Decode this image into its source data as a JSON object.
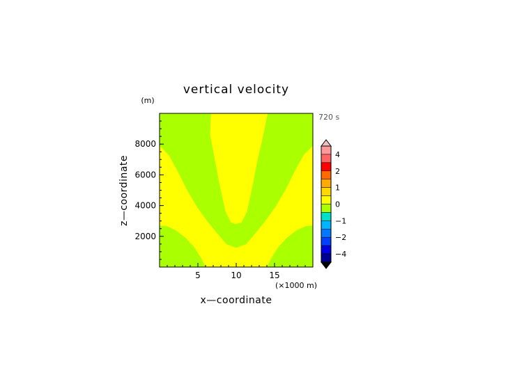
{
  "chart_data": {
    "type": "heatmap",
    "title": "vertical velocity",
    "time_label": "720 s",
    "xlabel": "x—coordinate",
    "ylabel": "z—coordinate",
    "x_unit": "(×1000 m)",
    "y_unit": "(m)",
    "xlim": [
      0,
      20
    ],
    "ylim": [
      0,
      10000
    ],
    "x_ticks": [
      5,
      10,
      15
    ],
    "y_ticks": [
      2000,
      4000,
      6000,
      8000
    ],
    "regions": [
      {
        "name": "positive",
        "color": "#ffff00",
        "polygons": [
          [
            [
              6.7,
              10000
            ],
            [
              14.1,
              10000
            ],
            [
              13.5,
              8500
            ],
            [
              12.8,
              7000
            ],
            [
              12.1,
              5200
            ],
            [
              11.4,
              3600
            ],
            [
              10.7,
              2900
            ],
            [
              10,
              2800
            ],
            [
              9.3,
              2900
            ],
            [
              8.6,
              3600
            ],
            [
              7.9,
              5200
            ],
            [
              7.2,
              7000
            ],
            [
              6.6,
              8600
            ]
          ],
          [
            [
              0,
              7900
            ],
            [
              1.2,
              7300
            ],
            [
              2.4,
              6200
            ],
            [
              3.6,
              5000
            ],
            [
              4.9,
              3900
            ],
            [
              6.2,
              3000
            ],
            [
              7.5,
              2200
            ],
            [
              8.7,
              1500
            ],
            [
              10,
              1250
            ],
            [
              11.3,
              1500
            ],
            [
              12.5,
              2200
            ],
            [
              13.8,
              3000
            ],
            [
              15.1,
              3900
            ],
            [
              16.4,
              5000
            ],
            [
              17.6,
              6200
            ],
            [
              18.8,
              7300
            ],
            [
              20,
              7900
            ],
            [
              20,
              2700
            ],
            [
              19,
              2650
            ],
            [
              17.9,
              2400
            ],
            [
              16.6,
              1900
            ],
            [
              15.5,
              1300
            ],
            [
              14.6,
              600
            ],
            [
              14,
              0
            ],
            [
              6,
              0
            ],
            [
              5.4,
              600
            ],
            [
              4.5,
              1300
            ],
            [
              3.4,
              1900
            ],
            [
              2.1,
              2400
            ],
            [
              1,
              2650
            ],
            [
              0,
              2700
            ]
          ]
        ]
      },
      {
        "name": "background",
        "color": "#aaff00"
      }
    ],
    "colorbar": {
      "tick_labels": [
        "4",
        "2",
        "1",
        "0",
        "−1",
        "−2",
        "−4"
      ],
      "bands": [
        {
          "level": "above 5",
          "color": "#f0c0c0"
        },
        {
          "level": "4 to 5",
          "color": "#ff9898"
        },
        {
          "level": "3 to 4",
          "color": "#ff6464"
        },
        {
          "level": "2 to 3",
          "color": "#ff0000"
        },
        {
          "level": "1.5 to 2",
          "color": "#ff6a00"
        },
        {
          "level": "1 to 1.5",
          "color": "#ffaa00"
        },
        {
          "level": "0.5 to 1",
          "color": "#ffd800"
        },
        {
          "level": "0 to 0.5",
          "color": "#ffff00"
        },
        {
          "level": "-0.5 to 0",
          "color": "#aaff00"
        },
        {
          "level": "-1 to -0.5",
          "color": "#00e0c8"
        },
        {
          "level": "-1.5 to -1",
          "color": "#00b4ff"
        },
        {
          "level": "-2 to -1.5",
          "color": "#0078ff"
        },
        {
          "level": "-3 to -2",
          "color": "#0040ff"
        },
        {
          "level": "-4 to -3",
          "color": "#0000e0"
        },
        {
          "level": "-5 to -4",
          "color": "#000090"
        },
        {
          "level": "below -5",
          "color": "#000000"
        }
      ]
    }
  }
}
